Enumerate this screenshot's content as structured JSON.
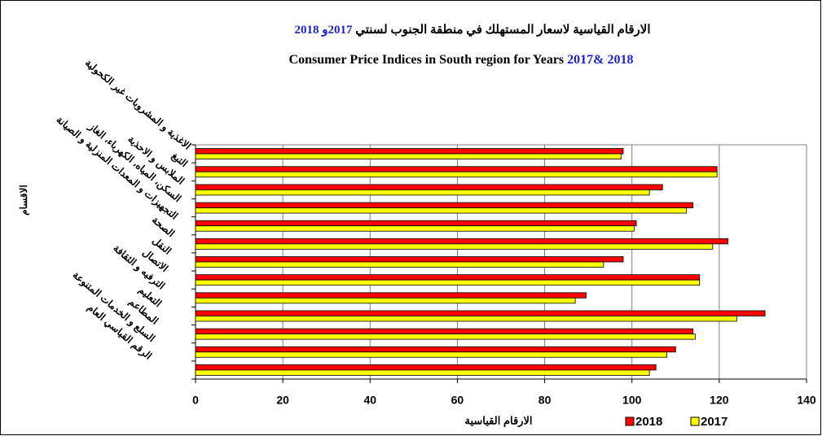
{
  "chart_data": {
    "type": "bar",
    "orientation": "horizontal",
    "title_ar": {
      "text": "الارقام القياسية لاسعار المستهلك في منطقة الجنوب لسنتي",
      "years": "2017و 2018",
      "years_color": "#1f1fd0"
    },
    "title_en": {
      "text": "Consumer Price Indices in South region for Years",
      "years": "2017& 2018",
      "years_color": "#1f1fd0"
    },
    "x_label": "الارقام القياسية",
    "y_label": "الاقسام",
    "categories": [
      "الاغذية و المشروبات غير الكحولية",
      "التبغ",
      "الملابس و الاحذية",
      "السكن، المياه، الكهرباء، الغاز",
      "التجهيزات و المعدات المنزلية و الصيانة",
      "الصحة",
      "النقل",
      "الاتصال",
      "الترفيه و الثقافة",
      "التعليم",
      "المطاعم",
      "السلع و الخدمات المتنوعة",
      "الرقم القياسي العام"
    ],
    "series": [
      {
        "name": "2018",
        "color": "#ff0000",
        "values": [
          98,
          119.5,
          107,
          114,
          101,
          122,
          98,
          115.5,
          89.5,
          130.5,
          114,
          110,
          105.5
        ]
      },
      {
        "name": "2017",
        "color": "#ffff00",
        "values": [
          97.5,
          119.5,
          104,
          112.5,
          100.5,
          118.5,
          93.5,
          115.5,
          87,
          124,
          114.5,
          108,
          104
        ]
      }
    ],
    "xlim": [
      0,
      140
    ],
    "xticks": [
      0,
      20,
      40,
      60,
      80,
      100,
      120,
      140
    ],
    "grid": true,
    "legend_position": "bottom-right"
  }
}
